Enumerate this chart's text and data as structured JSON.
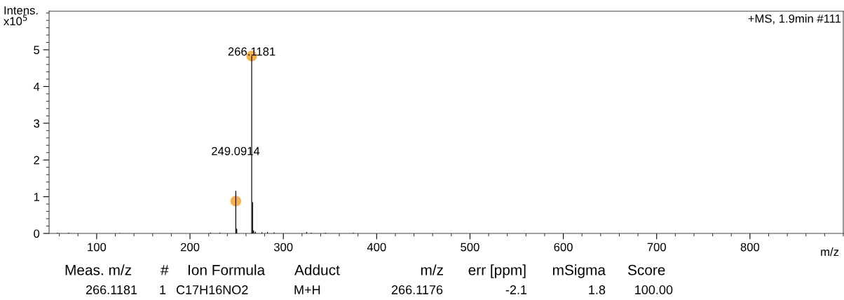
{
  "chart_data": {
    "type": "bar",
    "ylabel": "Intens.\nx10$^{5}$",
    "xlabel": "m/z",
    "xlim": [
      49,
      900
    ],
    "ylim": [
      0,
      6.05
    ],
    "xticks": [
      100,
      200,
      300,
      400,
      500,
      600,
      700,
      800
    ],
    "yticks": [
      0,
      1,
      2,
      3,
      4,
      5
    ],
    "grid": false,
    "legend": false,
    "series": [
      {
        "color": "#000000",
        "x": [
          58,
          70,
          125,
          222,
          232,
          249.0914,
          250.09,
          266.1181,
          267.12,
          268.1,
          270,
          277,
          283,
          290,
          325,
          330,
          345,
          375
        ],
        "values": [
          0.02,
          0.02,
          0.01,
          0.02,
          0.02,
          1.16,
          0.13,
          4.83,
          0.85,
          0.08,
          0.05,
          0.03,
          0.04,
          0.03,
          0.04,
          0.02,
          0.02,
          0.02
        ]
      },
      {
        "type": "scatter",
        "color": "#f7b24f",
        "marker": "circle",
        "x": [
          249.0914,
          266.1181
        ],
        "values": [
          0.88,
          4.83
        ]
      }
    ],
    "annotations": [
      "+MS, 1.9min #111",
      "249.0914",
      {
        "text": "266.1181",
        "x": 266.1181,
        "y": 4.83
      },
      "Meas. m/z",
      "#",
      "Ion Formula",
      "Adduct",
      "m/z",
      "err [ppm]",
      "mSigma",
      "Score",
      "266.1181",
      "1",
      "C17H16NO2",
      "M+H",
      "266.1176",
      "-2.1",
      "1.8",
      "100.00"
    ]
  }
}
